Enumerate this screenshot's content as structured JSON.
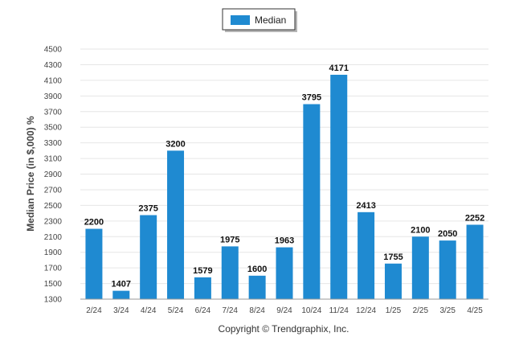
{
  "chart_data": {
    "type": "bar",
    "title": "",
    "xlabel": "",
    "ylabel": "Median Price (in $,000) %",
    "categories": [
      "2/24",
      "3/24",
      "4/24",
      "5/24",
      "6/24",
      "7/24",
      "8/24",
      "9/24",
      "10/24",
      "11/24",
      "12/24",
      "1/25",
      "2/25",
      "3/25",
      "4/25"
    ],
    "series": [
      {
        "name": "Median",
        "color": "#1f8ad1",
        "values": [
          2200,
          1407,
          2375,
          3200,
          1579,
          1975,
          1600,
          1963,
          3795,
          4171,
          2413,
          1755,
          2100,
          2050,
          2252
        ]
      }
    ],
    "ylim": [
      1300,
      4500
    ],
    "yticks": [
      1300,
      1500,
      1700,
      1900,
      2100,
      2300,
      2500,
      2700,
      2900,
      3100,
      3300,
      3500,
      3700,
      3900,
      4100,
      4300,
      4500
    ],
    "grid": true,
    "legend_position": "top-center",
    "data_labels": true
  },
  "footer": {
    "copyright": "Copyright © Trendgraphix, Inc."
  }
}
